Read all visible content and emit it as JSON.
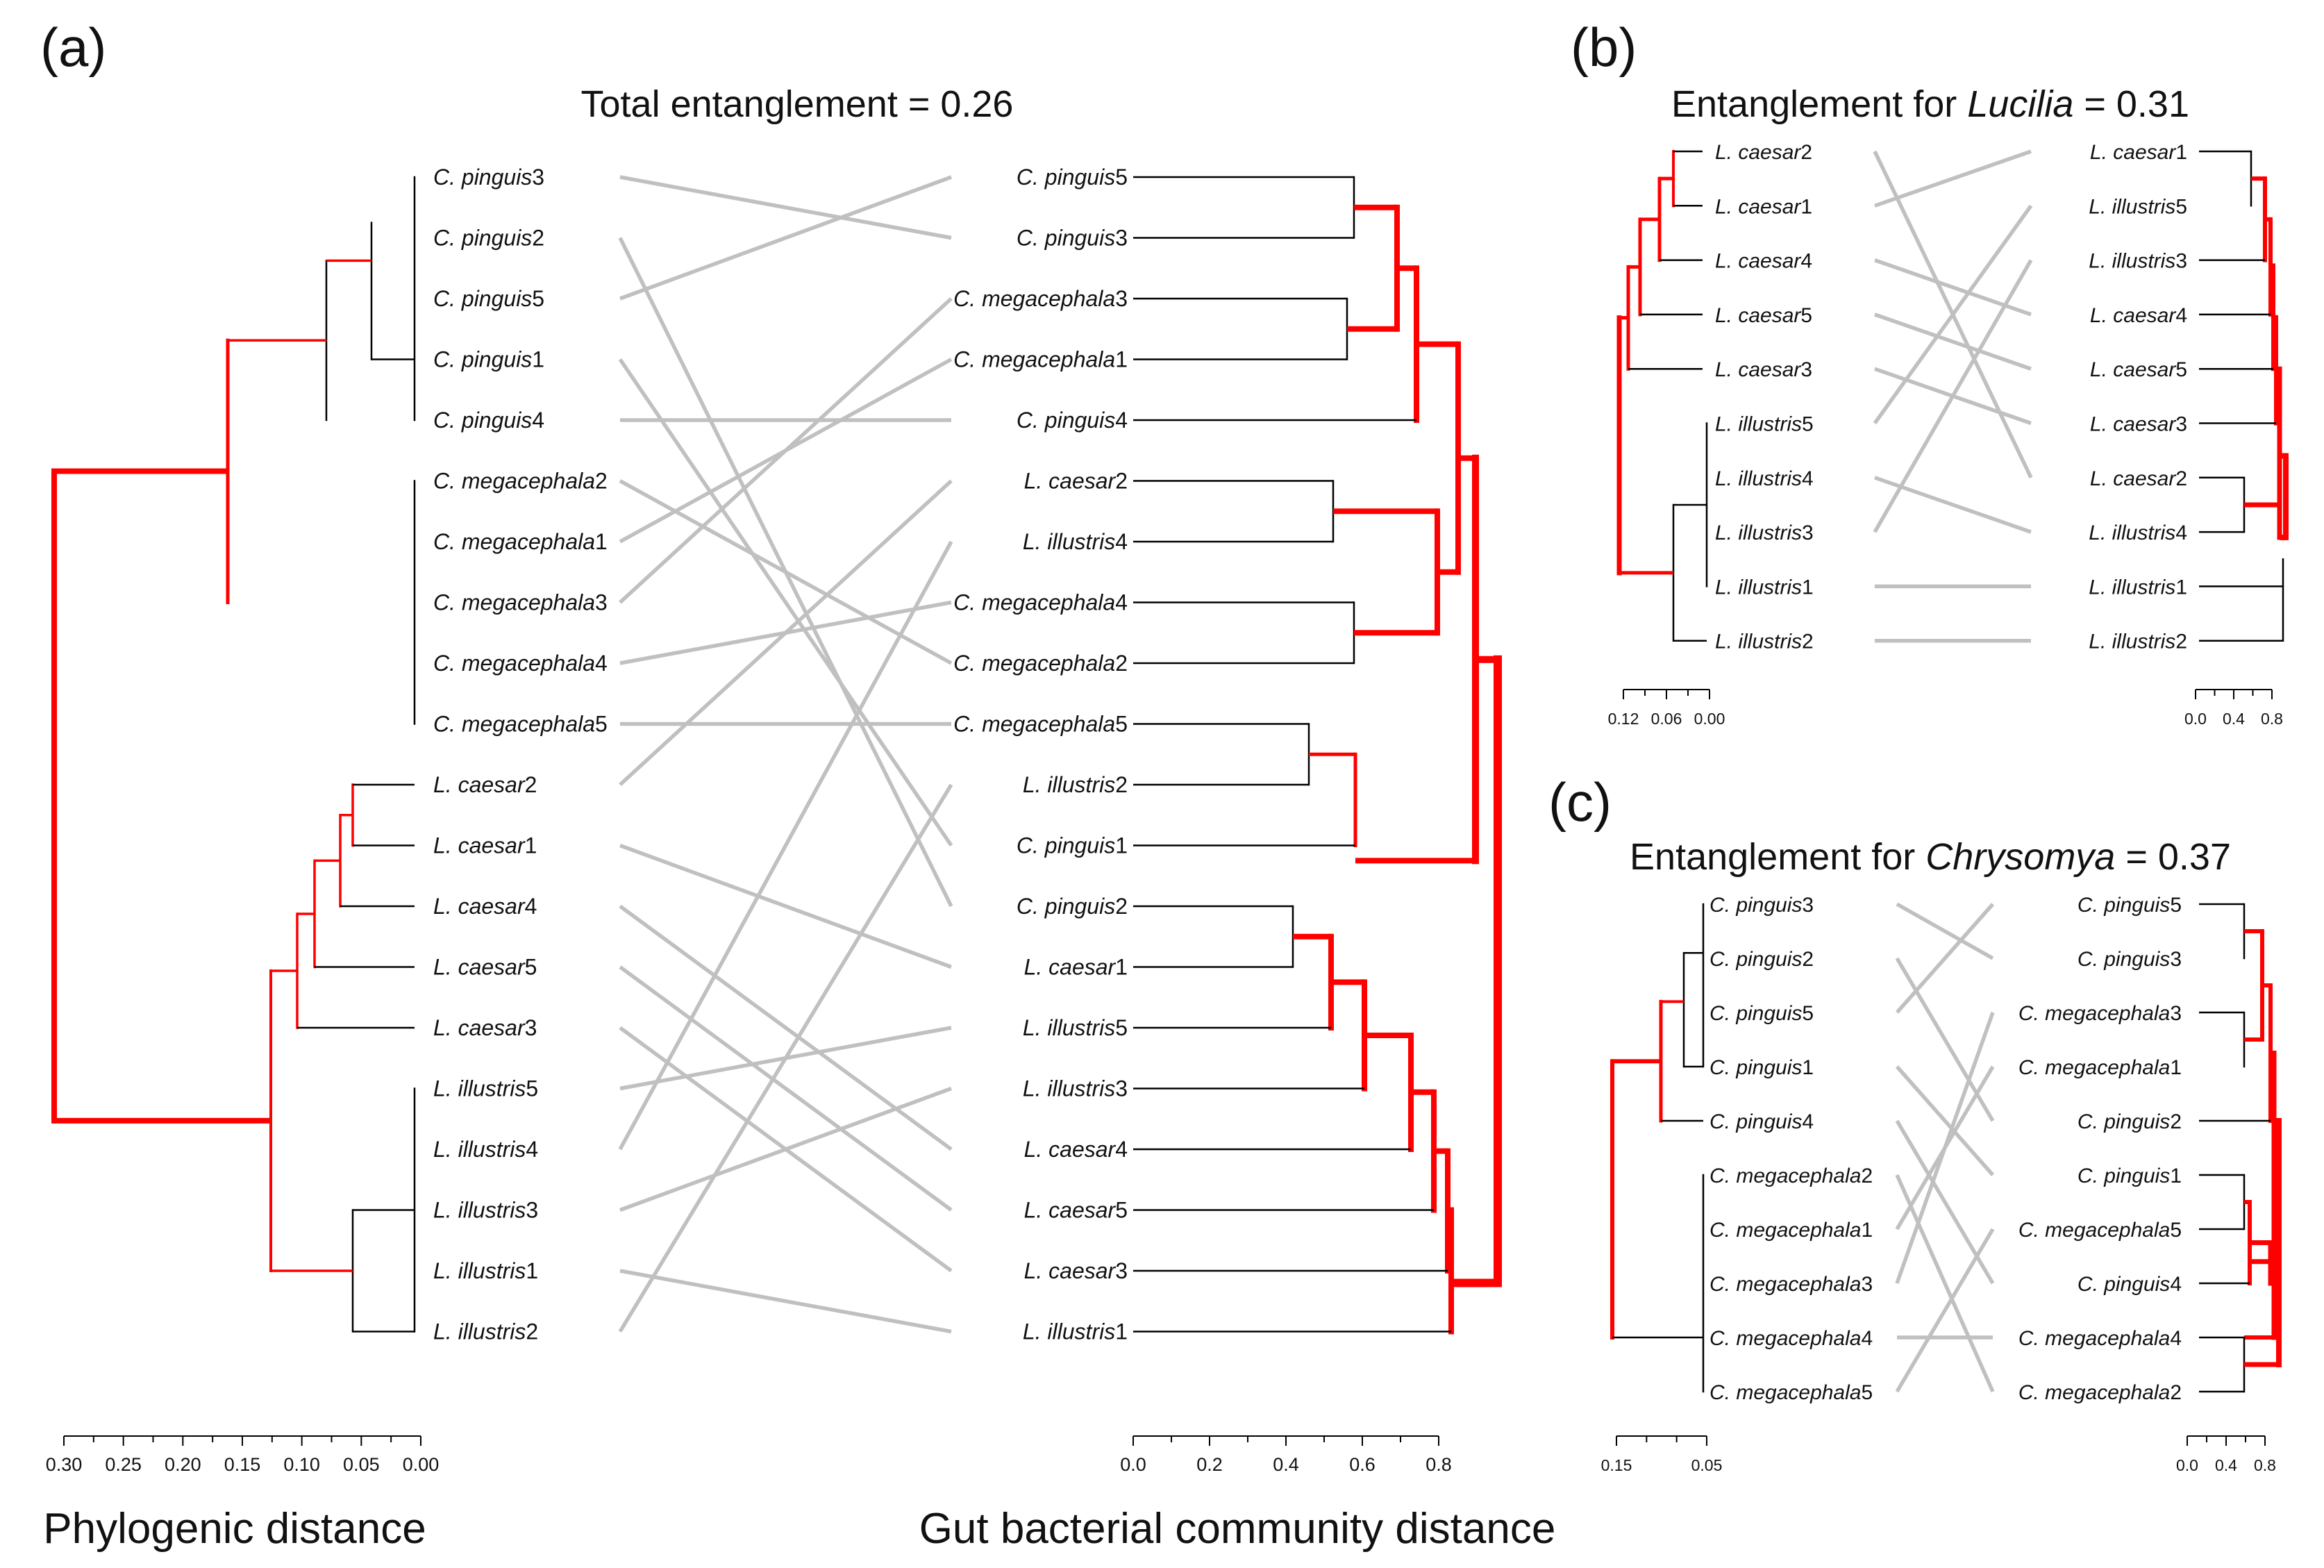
{
  "panels": {
    "a": {
      "label": "(a)",
      "title_text": "Total entanglement = 0.26",
      "left_leaves": [
        "C. pinguis3",
        "C. pinguis2",
        "C. pinguis5",
        "C. pinguis1",
        "C. pinguis4",
        "C. megacephala2",
        "C. megacephala1",
        "C. megacephala3",
        "C. megacephala4",
        "C. megacephala5",
        "L. caesar2",
        "L. caesar1",
        "L. caesar4",
        "L. caesar5",
        "L. caesar3",
        "L. illustris5",
        "L. illustris4",
        "L. illustris3",
        "L. illustris1",
        "L. illustris2"
      ],
      "right_leaves": [
        "C. pinguis5",
        "C. pinguis3",
        "C. megacephala3",
        "C. megacephala1",
        "C. pinguis4",
        "L. caesar2",
        "L. illustris4",
        "C. megacephala4",
        "C. megacephala2",
        "C. megacephala5",
        "L. illustris2",
        "C. pinguis1",
        "C. pinguis2",
        "L. caesar1",
        "L. illustris5",
        "L. illustris3",
        "L. caesar4",
        "L. caesar5",
        "L. caesar3",
        "L. illustris1"
      ],
      "left_axis_ticks": [
        "0.30",
        "0.25",
        "0.20",
        "0.15",
        "0.10",
        "0.05",
        "0.00"
      ],
      "right_axis_ticks": [
        "0.0",
        "0.2",
        "0.4",
        "0.6",
        "0.8"
      ],
      "left_axis_title": "Phylogenic distance",
      "right_axis_title": "Gut bacterial community distance"
    },
    "b": {
      "label": "(b)",
      "title_pre": "Entanglement for ",
      "title_genus": "Lucilia",
      "title_post": " = 0.31",
      "left_leaves": [
        "L. caesar2",
        "L. caesar1",
        "L. caesar4",
        "L. caesar5",
        "L. caesar3",
        "L. illustris5",
        "L. illustris4",
        "L. illustris3",
        "L. illustris1",
        "L. illustris2"
      ],
      "right_leaves": [
        "L. caesar1",
        "L. illustris5",
        "L. illustris3",
        "L. caesar4",
        "L. caesar5",
        "L. caesar3",
        "L. caesar2",
        "L. illustris4",
        "L. illustris1",
        "L. illustris2"
      ],
      "left_axis_ticks": [
        "0.12",
        "0.06",
        "0.00"
      ],
      "right_axis_ticks": [
        "0.0",
        "0.4",
        "0.8"
      ]
    },
    "c": {
      "label": "(c)",
      "title_pre": "Entanglement for ",
      "title_genus": "Chrysomya",
      "title_post": " = 0.37",
      "left_leaves": [
        "C. pinguis3",
        "C. pinguis2",
        "C. pinguis5",
        "C. pinguis1",
        "C. pinguis4",
        "C. megacephala2",
        "C. megacephala1",
        "C. megacephala3",
        "C. megacephala4",
        "C. megacephala5"
      ],
      "right_leaves": [
        "C. pinguis5",
        "C. pinguis3",
        "C. megacephala3",
        "C. megacephala1",
        "C. pinguis2",
        "C. pinguis1",
        "C. megacephala5",
        "C. pinguis4",
        "C. megacephala4",
        "C. megacephala2"
      ],
      "left_axis_ticks": [
        "0.15",
        "0.05"
      ],
      "right_axis_ticks": [
        "0.0",
        "0.4",
        "0.8"
      ]
    }
  },
  "colors": {
    "highlight": "#ff0000",
    "connector": "#c0c0c0",
    "tree": "#000000"
  }
}
